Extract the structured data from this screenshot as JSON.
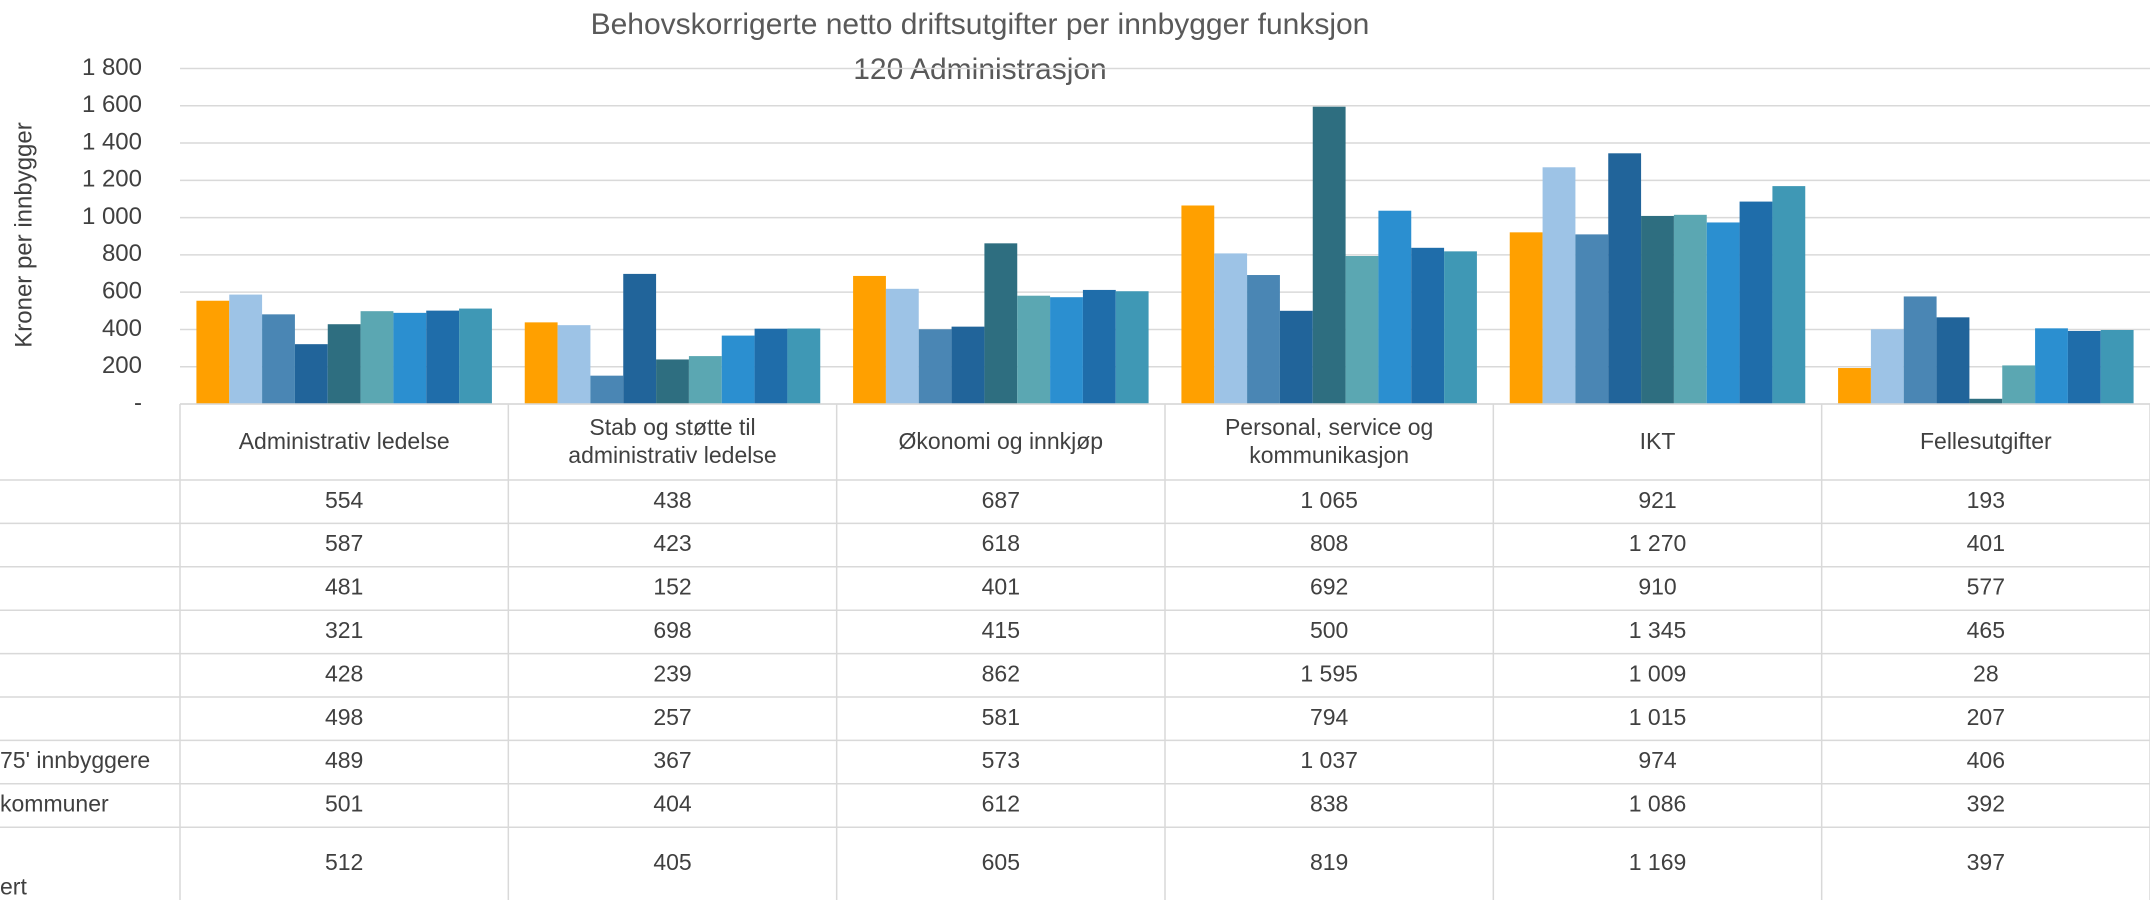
{
  "chart_data": {
    "type": "bar",
    "title": "Behovskorrigerte netto driftsutgifter per innbygger  funksjon",
    "subtitle": "120 Administrasjon",
    "y_label": "Kroner per innbygger",
    "categories": [
      "Administrativ ledelse",
      "Stab og støtte til administrativ ledelse",
      "Økonomi og innkjøp",
      "Personal, service og kommunikasjon",
      "IKT",
      "Fellesutgifter"
    ],
    "series": [
      {
        "color": "#ffa000",
        "values": [
          554,
          438,
          687,
          1065,
          921,
          193
        ],
        "value_labels": [
          "554",
          "438",
          "687",
          "1 065",
          "921",
          "193"
        ]
      },
      {
        "color": "#9dc3e6",
        "values": [
          587,
          423,
          618,
          808,
          1270,
          401
        ],
        "value_labels": [
          "587",
          "423",
          "618",
          "808",
          "1 270",
          "401"
        ]
      },
      {
        "color": "#4a86b4",
        "values": [
          481,
          152,
          401,
          692,
          910,
          577
        ],
        "value_labels": [
          "481",
          "152",
          "401",
          "692",
          "910",
          "577"
        ]
      },
      {
        "color": "#21649a",
        "values": [
          321,
          698,
          415,
          500,
          1345,
          465
        ],
        "value_labels": [
          "321",
          "698",
          "415",
          "500",
          "1 345",
          "465"
        ]
      },
      {
        "color": "#2e6e80",
        "values": [
          428,
          239,
          862,
          1595,
          1009,
          28
        ],
        "value_labels": [
          "428",
          "239",
          "862",
          "1 595",
          "1 009",
          "28"
        ]
      },
      {
        "color": "#5ba7b2",
        "values": [
          498,
          257,
          581,
          794,
          1015,
          207
        ],
        "value_labels": [
          "498",
          "257",
          "581",
          "794",
          "1 015",
          "207"
        ]
      },
      {
        "name": "75' innbyggere",
        "color": "#2b8fd0",
        "values": [
          489,
          367,
          573,
          1037,
          974,
          406
        ],
        "value_labels": [
          "489",
          "367",
          "573",
          "1 037",
          "974",
          "406"
        ]
      },
      {
        "name": "kommuner",
        "color": "#1f6daa",
        "values": [
          501,
          404,
          612,
          838,
          1086,
          392
        ],
        "value_labels": [
          "501",
          "404",
          "612",
          "838",
          "1 086",
          "392"
        ]
      },
      {
        "name": "ert",
        "color": "#3f98b5",
        "values": [
          512,
          405,
          605,
          819,
          1169,
          397
        ],
        "value_labels": [
          "512",
          "405",
          "605",
          "819",
          "1 169",
          "397"
        ]
      }
    ],
    "ylim": [
      0,
      1800
    ],
    "yticks": [
      {
        "value": 0,
        "label": "-"
      },
      200,
      400,
      600,
      800,
      {
        "value": 1000,
        "label": "1 000"
      },
      {
        "value": 1200,
        "label": "1 200"
      },
      {
        "value": 1400,
        "label": "1 400"
      },
      {
        "value": 1600,
        "label": "1 600"
      },
      {
        "value": 1800,
        "label": "1 800"
      }
    ],
    "grid": true
  }
}
